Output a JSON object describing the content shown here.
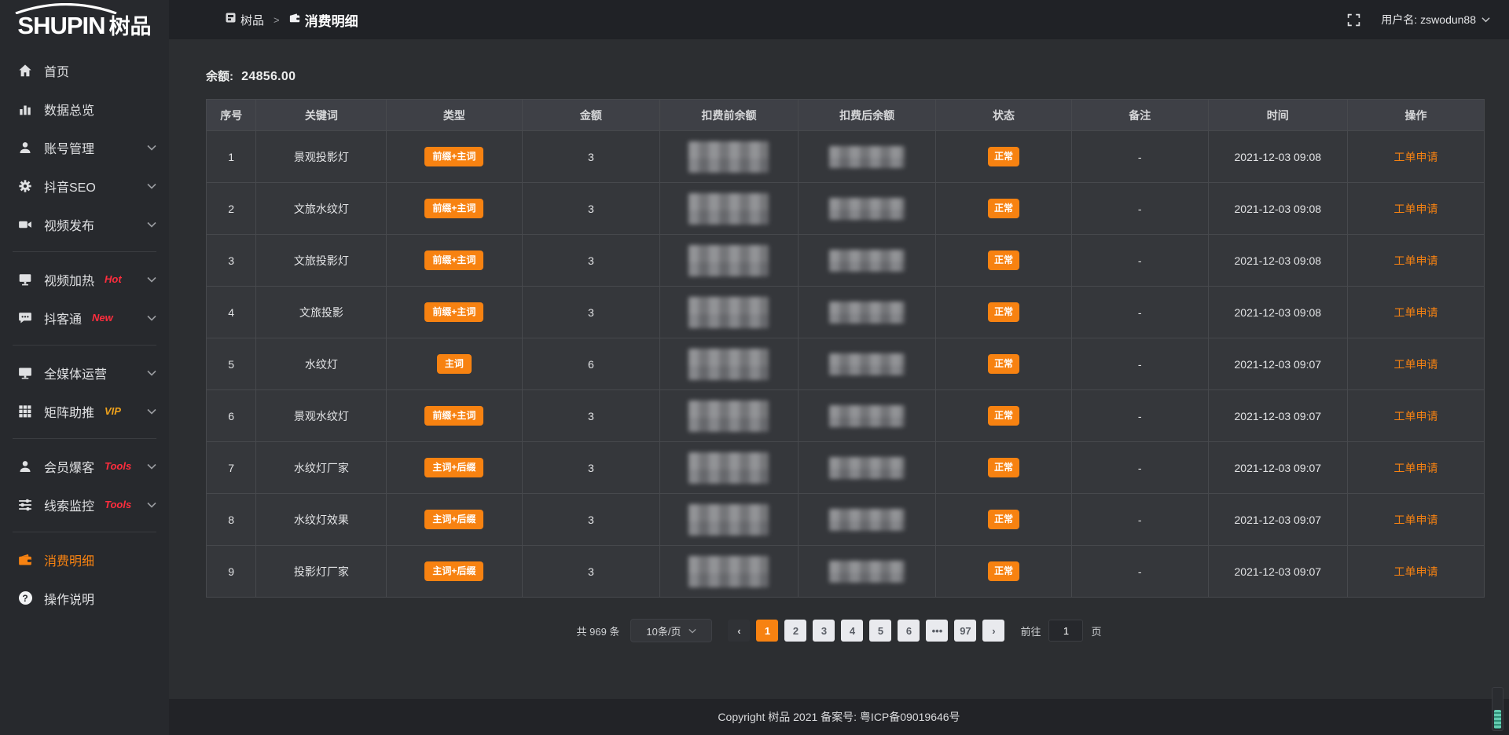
{
  "topbar": {
    "breadcrumb": [
      {
        "label": "树品",
        "icon": "dashboard-icon"
      },
      {
        "label": "消费明细",
        "icon": "wallet-icon"
      }
    ],
    "separator": ">",
    "fullscreen_icon": "fullscreen-icon",
    "username_label": "用户名: zswodun88"
  },
  "sidebar": {
    "logo_en": "SHUPIN",
    "logo_cn": "树品",
    "groups": [
      {
        "items": [
          {
            "label": "首页",
            "icon": "home"
          },
          {
            "label": "数据总览",
            "icon": "bar-chart"
          },
          {
            "label": "账号管理",
            "icon": "user",
            "chevron": true
          },
          {
            "label": "抖音SEO",
            "icon": "gear",
            "chevron": true
          },
          {
            "label": "视频发布",
            "icon": "video",
            "chevron": true
          }
        ]
      },
      {
        "items": [
          {
            "label": "视频加热",
            "icon": "screen",
            "tag": "Hot",
            "tag_color": "#ff2d3d",
            "chevron": true
          },
          {
            "label": "抖客通",
            "icon": "chat",
            "tag": "New",
            "tag_color": "#ff2d3d",
            "chevron": true
          }
        ]
      },
      {
        "items": [
          {
            "label": "全媒体运营",
            "icon": "monitor",
            "chevron": true
          },
          {
            "label": "矩阵助推",
            "icon": "grid",
            "tag": "VIP",
            "tag_color": "#efa21c",
            "chevron": true
          }
        ]
      },
      {
        "items": [
          {
            "label": "会员爆客",
            "icon": "user",
            "tag": "Tools",
            "tag_color": "#ff2d3d",
            "chevron": true
          },
          {
            "label": "线索监控",
            "icon": "sliders",
            "tag": "Tools",
            "tag_color": "#ff2d3d",
            "chevron": true
          }
        ]
      },
      {
        "items": [
          {
            "label": "消费明细",
            "icon": "wallet",
            "active": true
          },
          {
            "label": "操作说明",
            "icon": "question"
          }
        ]
      }
    ]
  },
  "main": {
    "balance_label": "余额:",
    "balance_value": "24856.00",
    "table": {
      "columns": [
        "序号",
        "关键词",
        "类型",
        "金额",
        "扣费前余额",
        "扣费后余额",
        "状态",
        "备注",
        "时间",
        "操作"
      ],
      "censored_columns": [
        "扣费前余额",
        "扣费后余额"
      ],
      "rows": [
        {
          "no": "1",
          "keyword": "景观投影灯",
          "type": "前缀+主词",
          "amount": "3",
          "status": "正常",
          "remark": "-",
          "time": "2021-12-03 09:08",
          "action": "工单申请"
        },
        {
          "no": "2",
          "keyword": "文旅水纹灯",
          "type": "前缀+主词",
          "amount": "3",
          "status": "正常",
          "remark": "-",
          "time": "2021-12-03 09:08",
          "action": "工单申请"
        },
        {
          "no": "3",
          "keyword": "文旅投影灯",
          "type": "前缀+主词",
          "amount": "3",
          "status": "正常",
          "remark": "-",
          "time": "2021-12-03 09:08",
          "action": "工单申请"
        },
        {
          "no": "4",
          "keyword": "文旅投影",
          "type": "前缀+主词",
          "amount": "3",
          "status": "正常",
          "remark": "-",
          "time": "2021-12-03 09:08",
          "action": "工单申请"
        },
        {
          "no": "5",
          "keyword": "水纹灯",
          "type": "主词",
          "amount": "6",
          "status": "正常",
          "remark": "-",
          "time": "2021-12-03 09:07",
          "action": "工单申请"
        },
        {
          "no": "6",
          "keyword": "景观水纹灯",
          "type": "前缀+主词",
          "amount": "3",
          "status": "正常",
          "remark": "-",
          "time": "2021-12-03 09:07",
          "action": "工单申请"
        },
        {
          "no": "7",
          "keyword": "水纹灯厂家",
          "type": "主词+后缀",
          "amount": "3",
          "status": "正常",
          "remark": "-",
          "time": "2021-12-03 09:07",
          "action": "工单申请"
        },
        {
          "no": "8",
          "keyword": "水纹灯效果",
          "type": "主词+后缀",
          "amount": "3",
          "status": "正常",
          "remark": "-",
          "time": "2021-12-03 09:07",
          "action": "工单申请"
        },
        {
          "no": "9",
          "keyword": "投影灯厂家",
          "type": "主词+后缀",
          "amount": "3",
          "status": "正常",
          "remark": "-",
          "time": "2021-12-03 09:07",
          "action": "工单申请"
        }
      ]
    },
    "pagination": {
      "total_label": "共 969 条",
      "page_size_label": "10条/页",
      "prev": "‹",
      "next": "›",
      "pages": [
        "1",
        "2",
        "3",
        "4",
        "5",
        "6",
        "•••",
        "97"
      ],
      "active_page": "1",
      "jump_prefix": "前往",
      "jump_value": "1",
      "jump_suffix": "页"
    }
  },
  "footer": {
    "copyright": "Copyright 树品 2021 备案号: 粤ICP备09019646号"
  },
  "colors": {
    "accent_orange": "#f78211",
    "tag_red": "#ff2d3d",
    "tag_vip_gold": "#efa21c"
  }
}
